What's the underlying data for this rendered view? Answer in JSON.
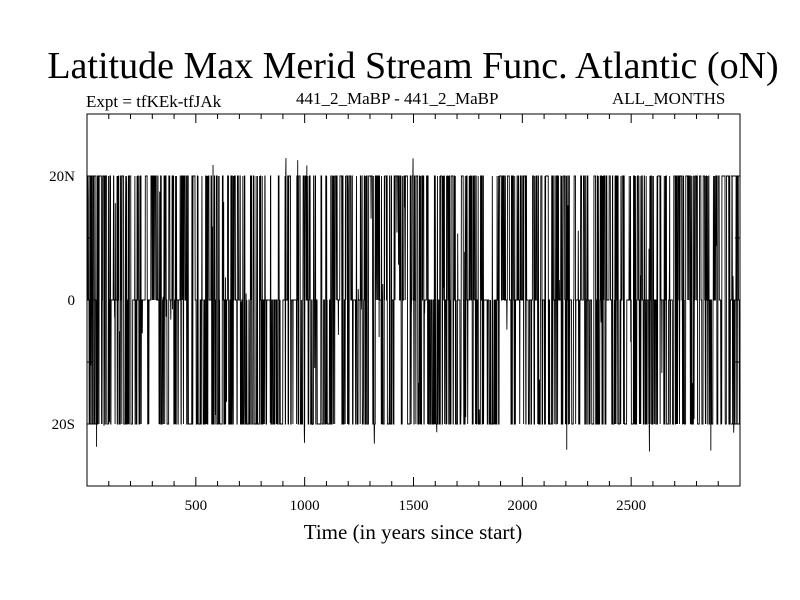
{
  "chart_data": {
    "type": "line",
    "title": "Latitude Max Merid Stream Func. Atlantic (oN)",
    "subtitle_left": "Expt = tfKEk-tfJAk",
    "subtitle_center": "441_2_MaBP - 441_2_MaBP",
    "subtitle_right": "ALL_MONTHS",
    "xlabel": "Time (in years since start)",
    "ylabel": "",
    "xlim": [
      0,
      3000
    ],
    "ylim": [
      -30,
      30
    ],
    "x_ticks": [
      500,
      1000,
      1500,
      2000,
      2500
    ],
    "x_tick_labels": [
      "500",
      "1000",
      "1500",
      "2000",
      "2500"
    ],
    "y_ticks": [
      -20,
      0,
      20
    ],
    "y_tick_labels": [
      "20S",
      "0",
      "20N"
    ],
    "grid": false,
    "series": [
      {
        "color": "#000000",
        "x_start": 0,
        "x_step": 1,
        "levels": [
          -20,
          0,
          20
        ],
        "spike_range": [
          -25,
          23
        ],
        "generator_seed": 441,
        "x": [
          0,
          3000
        ],
        "y": [
          20,
          0
        ]
      }
    ]
  }
}
